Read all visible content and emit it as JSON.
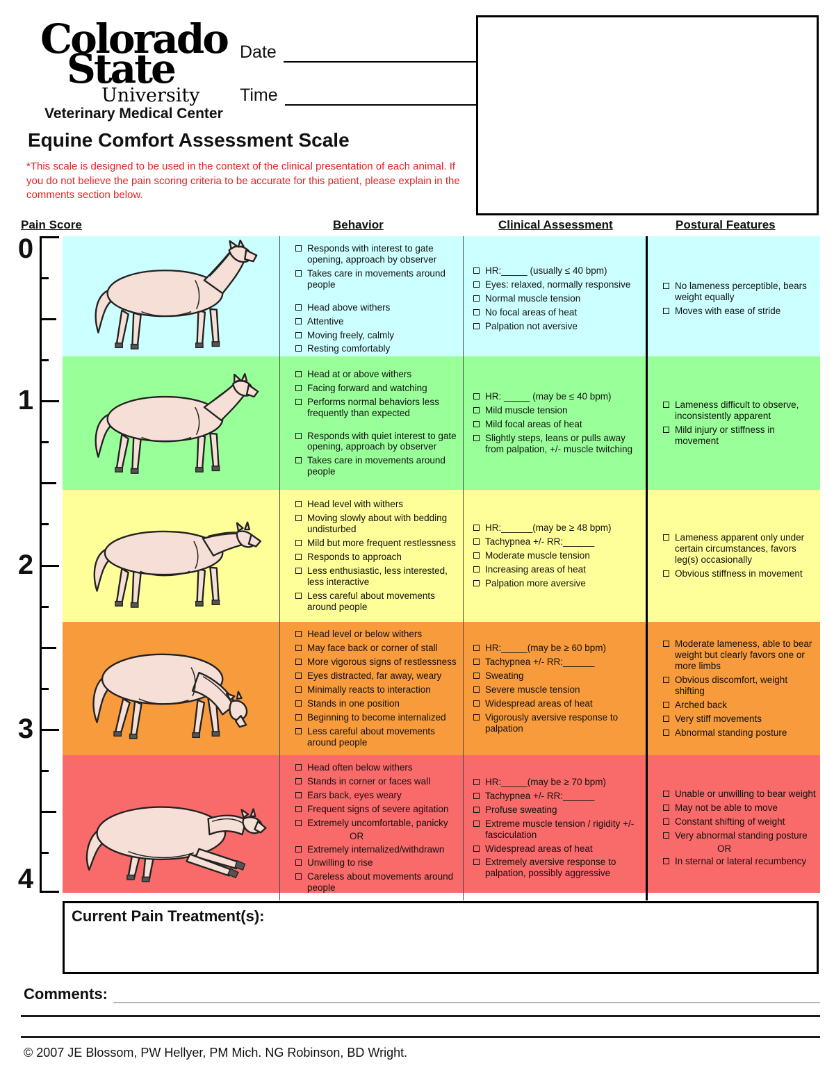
{
  "header": {
    "logo_line1": "Colorado",
    "logo_line2": "State",
    "logo_line3": "University",
    "department": "Veterinary Medical Center",
    "title": "Equine Comfort Assessment Scale",
    "note": "*This scale is designed to be used in the context of the clinical presentation of each animal. If you do not believe the pain scoring criteria to be accurate for this patient, please explain in the comments section below.",
    "date_label": "Date",
    "time_label": "Time"
  },
  "columns": {
    "pain_score": "Pain Score",
    "behavior": "Behavior",
    "clinical": "Clinical Assessment",
    "postural": "Postural Features"
  },
  "pain_scale": {
    "labels": [
      "0",
      "1",
      "2",
      "3",
      "4"
    ]
  },
  "rows": [
    {
      "score": "0",
      "color": "#CCFFFF",
      "horse_icon": "horse-standing-alert-icon",
      "behavior": [
        "Responds with interest to gate opening, approach by observer",
        "Takes care in movements around people",
        "",
        "Head above withers",
        "Attentive",
        "Moving freely, calmly",
        "Resting comfortably"
      ],
      "clinical": [
        "HR:_____ (usually ≤ 40 bpm)",
        "Eyes: relaxed, normally responsive",
        "Normal muscle tension",
        "No focal areas of heat",
        "Palpation not aversive"
      ],
      "postural": [
        "No lameness perceptible, bears weight equally",
        "Moves with ease of stride"
      ]
    },
    {
      "score": "1",
      "color": "#99FF99",
      "horse_icon": "horse-standing-watching-icon",
      "behavior": [
        "Head at or above withers",
        "Facing forward and watching",
        "Performs normal behaviors less frequently than expected",
        "",
        "Responds with quiet interest to gate opening, approach by observer",
        "Takes care in movements around people"
      ],
      "clinical": [
        "HR: _____ (may be ≤ 40 bpm)",
        "Mild muscle tension",
        "Mild focal areas of heat",
        "Slightly steps, leans or pulls away from palpation, +/- muscle twitching"
      ],
      "postural": [
        "Lameness difficult to observe, inconsistently apparent",
        "Mild injury or stiffness in movement"
      ]
    },
    {
      "score": "2",
      "color": "#FFFF99",
      "horse_icon": "horse-head-level-icon",
      "behavior": [
        "Head level with withers",
        "Moving slowly about with bedding undisturbed",
        "Mild but more frequent restlessness",
        "Responds to approach",
        "Less enthusiastic, less interested, less interactive",
        "Less careful about movements around people"
      ],
      "clinical": [
        "HR:______(may be ≥ 48 bpm)",
        "Tachypnea +/- RR:______",
        "Moderate muscle tension",
        "Increasing areas of heat",
        "Palpation more aversive"
      ],
      "postural": [
        "Lameness apparent only under certain circumstances, favors leg(s) occasionally",
        "Obvious stiffness in movement"
      ]
    },
    {
      "score": "3",
      "color": "#F89B3C",
      "horse_icon": "horse-head-low-icon",
      "behavior": [
        "Head level or below withers",
        "May face back or corner of stall",
        "More vigorous signs of restlessness",
        "Eyes distracted, far away, weary",
        "Minimally reacts to interaction",
        "Stands in one position",
        "Beginning to become internalized",
        "Less careful about movements around people"
      ],
      "clinical": [
        "HR:_____(may be ≥ 60 bpm)",
        "Tachypnea +/- RR:______",
        "Sweating",
        "Severe muscle tension",
        "Widespread areas of heat",
        "Vigorously aversive response to palpation"
      ],
      "postural": [
        "Moderate lameness, able to bear weight but clearly favors one or more limbs",
        "Obvious discomfort, weight shifting",
        "Arched back",
        "Very stiff movements",
        "Abnormal standing posture"
      ]
    },
    {
      "score": "4",
      "color": "#F96A6A",
      "horse_icon": "horse-recumbent-icon",
      "behavior": [
        "Head often below withers",
        "Stands in corner or faces wall",
        "Ears back, eyes weary",
        "Frequent signs of severe agitation",
        "Extremely uncomfortable, panicky",
        "OR",
        "Extremely internalized/withdrawn",
        "Unwilling to rise",
        "Careless about movements around people"
      ],
      "clinical": [
        "HR:_____(may be ≥ 70 bpm)",
        "Tachypnea +/- RR:______",
        "Profuse sweating",
        "Extreme muscle tension / rigidity +/- fasciculation",
        "Widespread areas of heat",
        "Extremely aversive response to palpation, possibly aggressive"
      ],
      "postural": [
        "Unable or unwilling to bear weight",
        "May not be able to move",
        "Constant shifting of weight",
        "Very abnormal standing posture",
        "OR",
        "In sternal or lateral recumbency"
      ]
    }
  ],
  "footer": {
    "treatment_label": "Current Pain Treatment(s):",
    "comments_label": "Comments:",
    "copyright": "© 2007 JE Blossom, PW Hellyer, PM Mich. NG Robinson, BD Wright."
  }
}
